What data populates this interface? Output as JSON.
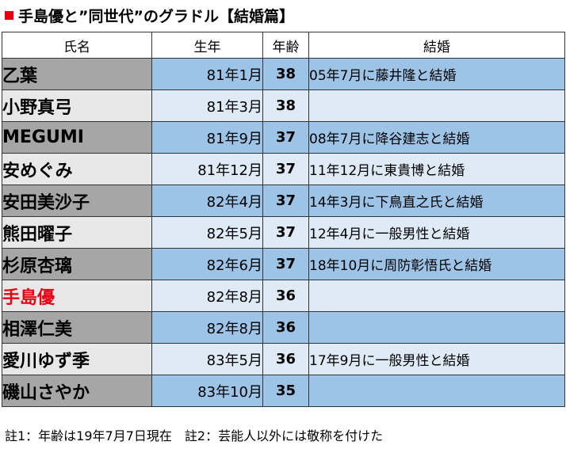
{
  "title": "手島優と”同世代”のグラドル【結婚篇】",
  "colors": {
    "title_marker": "#e60012",
    "highlight_name": "#e60012",
    "name_dark": "#a6a6a6",
    "name_light": "#e8e8e8",
    "cell_dark": "#9dc3e6",
    "cell_light": "#deeaf6"
  },
  "table": {
    "headers": [
      "氏名",
      "生年",
      "年齢",
      "結婚"
    ],
    "rows": [
      {
        "name": "乙葉",
        "birth": "81年1月",
        "age": "38",
        "marriage": "05年7月に藤井隆と結婚"
      },
      {
        "name": "小野真弓",
        "birth": "81年3月",
        "age": "38",
        "marriage": ""
      },
      {
        "name": "MEGUMI",
        "birth": "81年9月",
        "age": "37",
        "marriage": "08年7月に降谷建志と結婚"
      },
      {
        "name": "安めぐみ",
        "birth": "81年12月",
        "age": "37",
        "marriage": "11年12月に東貴博と結婚"
      },
      {
        "name": "安田美沙子",
        "birth": "82年4月",
        "age": "37",
        "marriage": "14年3月に下鳥直之氏と結婚"
      },
      {
        "name": "熊田曜子",
        "birth": "82年5月",
        "age": "37",
        "marriage": "12年4月に一般男性と結婚"
      },
      {
        "name": "杉原杏璃",
        "birth": "82年6月",
        "age": "37",
        "marriage": "18年10月に周防彰悟氏と結婚"
      },
      {
        "name": "手島優",
        "birth": "82年8月",
        "age": "36",
        "marriage": "",
        "highlight": true
      },
      {
        "name": "相澤仁美",
        "birth": "82年8月",
        "age": "36",
        "marriage": ""
      },
      {
        "name": "愛川ゆず季",
        "birth": "83年5月",
        "age": "36",
        "marriage": "17年9月に一般男性と結婚"
      },
      {
        "name": "磯山さやか",
        "birth": "83年10月",
        "age": "35",
        "marriage": ""
      }
    ]
  },
  "footnote": "註1：年齢は19年7月7日現在　註2：芸能人以外には敬称を付けた"
}
